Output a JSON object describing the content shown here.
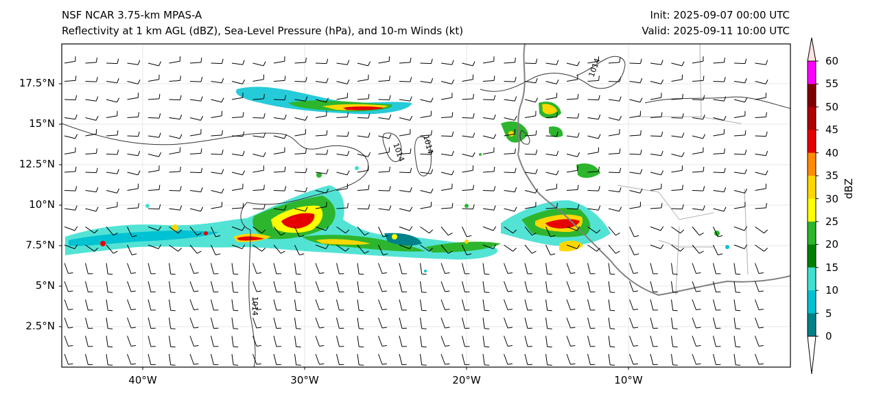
{
  "title_left": {
    "line1": "NSF NCAR 3.75-km MPAS-A",
    "line2": "Reflectivity at 1 km AGL (dBZ), Sea-Level Pressure (hPa), and 10-m Winds (kt)"
  },
  "title_right": {
    "line1": "Init: 2025-09-07 00:00 UTC",
    "line2": "Valid: 2025-09-11 10:00 UTC"
  },
  "map": {
    "extent": {
      "lon_min": -45,
      "lon_max": 0,
      "lat_min": 0,
      "lat_max": 20
    },
    "lat_ticks": [
      "17.5°N",
      "15°N",
      "12.5°N",
      "10°N",
      "7.5°N",
      "5°N",
      "2.5°N"
    ],
    "lon_ticks": [
      "40°W",
      "30°W",
      "20°W",
      "10°W"
    ],
    "isobar_labels": [
      "1014",
      "1014",
      "1014",
      "1014"
    ]
  },
  "colorbar": {
    "title": "dBZ",
    "tick_labels": [
      "0",
      "5",
      "10",
      "15",
      "20",
      "25",
      "30",
      "35",
      "40",
      "45",
      "50",
      "55",
      "60"
    ],
    "colors": [
      "#00828a",
      "#00c2d2",
      "#40e0d0",
      "#008000",
      "#2db52d",
      "#ffff00",
      "#ffd700",
      "#ff8c00",
      "#e60000",
      "#b00000",
      "#800000",
      "#ff00ff",
      "#ffe4e1"
    ]
  }
}
